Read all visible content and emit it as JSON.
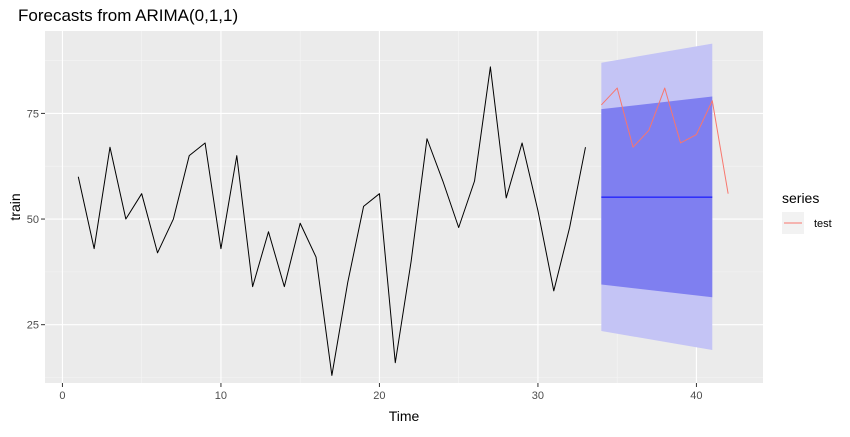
{
  "chart_data": {
    "type": "line",
    "title": "Forecasts from ARIMA(0,1,1)",
    "xlabel": "Time",
    "ylabel": "train",
    "xlim": [
      -1.1,
      44.2
    ],
    "ylim": [
      11.2,
      94.5
    ],
    "x_ticks": [
      0,
      10,
      20,
      30,
      40
    ],
    "y_ticks": [
      25,
      50,
      75
    ],
    "grid": true,
    "legend_title": "series",
    "legend_position": "right",
    "train": {
      "x": [
        1,
        2,
        3,
        4,
        5,
        6,
        7,
        8,
        9,
        10,
        11,
        12,
        13,
        14,
        15,
        16,
        17,
        18,
        19,
        20,
        21,
        22,
        23,
        24,
        25,
        26,
        27,
        28,
        29,
        30,
        31,
        32,
        33
      ],
      "y": [
        60,
        43,
        67,
        50,
        56,
        42,
        50,
        65,
        68,
        43,
        65,
        34,
        47,
        34,
        49,
        41,
        13,
        35,
        53,
        56,
        16,
        40,
        69,
        59,
        48,
        59,
        86,
        55,
        68,
        52,
        33,
        48,
        67
      ],
      "color": "#000000"
    },
    "forecast": {
      "x": [
        34,
        41
      ],
      "mean": [
        55.2,
        55.2
      ],
      "lo80": [
        34.5,
        31.5
      ],
      "hi80": [
        76.0,
        79.0
      ],
      "lo95": [
        23.5,
        19.0
      ],
      "hi95": [
        87.0,
        91.5
      ],
      "mean_color": "#0000ff",
      "band80_color": "#7f7ff0",
      "band95_color": "#c4c4f5"
    },
    "series": [
      {
        "name": "test",
        "x": [
          34,
          35,
          36,
          37,
          38,
          39,
          40,
          41,
          42
        ],
        "y": [
          77,
          81,
          67,
          71,
          81,
          68,
          70,
          78,
          56
        ],
        "color": "#f8766d"
      }
    ]
  }
}
